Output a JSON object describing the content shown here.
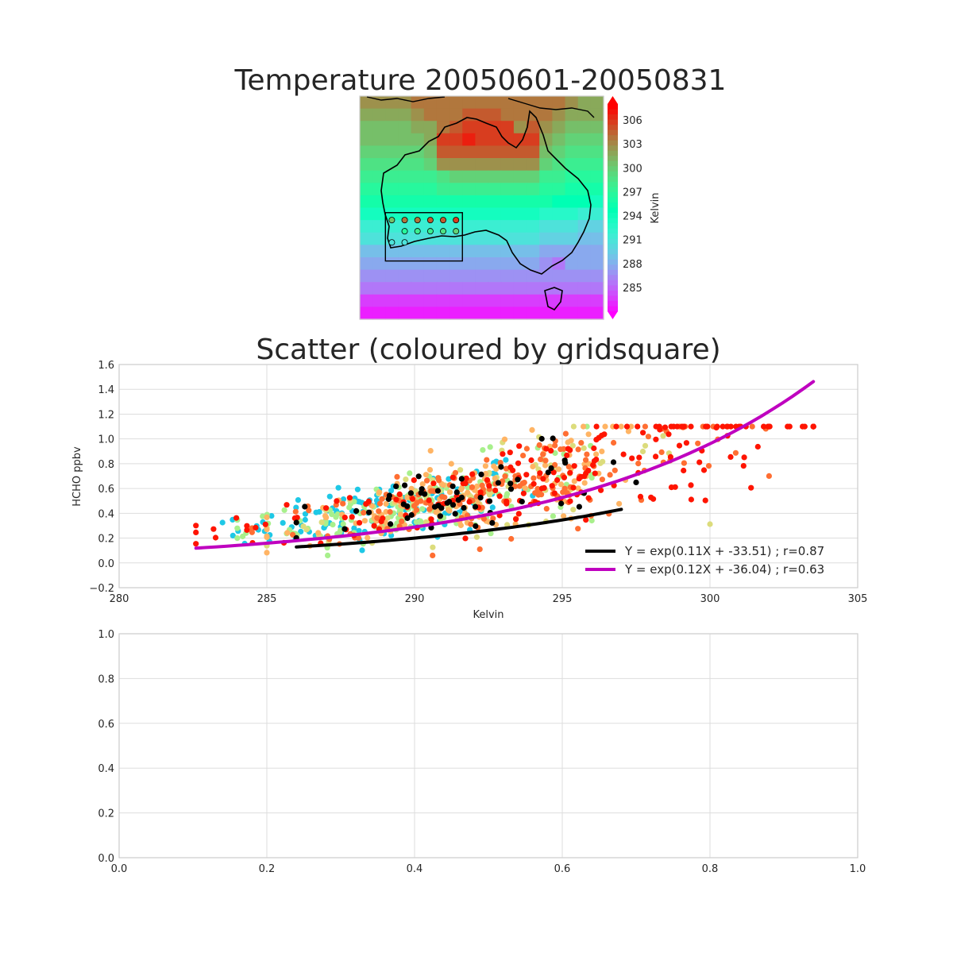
{
  "chart_data": [
    {
      "type": "heatmap",
      "title": "Temperature 20050601-20050831",
      "colorbar": {
        "label": "Kelvin",
        "ticks": [
          "306",
          "303",
          "300",
          "297",
          "294",
          "291",
          "288",
          "285"
        ],
        "range": [
          282,
          308
        ],
        "extend": "both",
        "colormap": "rainbow"
      },
      "grid": {
        "rows": 18,
        "cols": 19,
        "values": [
          [
            303,
            303,
            303,
            303,
            304,
            304,
            304,
            304,
            304,
            304,
            304,
            304,
            304,
            304,
            304,
            304,
            303,
            302,
            302
          ],
          [
            302,
            302,
            302,
            302,
            303,
            304,
            304,
            304,
            305,
            305,
            305,
            304,
            304,
            304,
            304,
            303,
            302,
            302,
            302
          ],
          [
            301,
            301,
            301,
            301,
            302,
            302,
            304,
            305,
            306,
            306,
            306,
            306,
            303,
            305,
            303,
            302,
            301,
            301,
            301
          ],
          [
            301,
            301,
            301,
            301,
            301,
            302,
            306,
            306,
            307,
            306,
            306,
            306,
            306,
            306,
            302,
            301,
            300,
            300,
            300
          ],
          [
            300,
            300,
            300,
            300,
            300,
            301,
            305,
            305,
            305,
            305,
            305,
            305,
            305,
            305,
            301,
            300,
            299,
            299,
            299
          ],
          [
            299,
            299,
            299,
            299,
            299,
            300,
            303,
            303,
            303,
            303,
            303,
            303,
            303,
            303,
            300,
            299,
            298,
            298,
            298
          ],
          [
            298,
            298,
            298,
            298,
            298,
            298,
            299,
            300,
            300,
            300,
            300,
            300,
            300,
            300,
            298,
            298,
            297,
            297,
            297
          ],
          [
            297,
            297,
            297,
            297,
            297,
            297,
            298,
            298,
            298,
            298,
            298,
            298,
            298,
            298,
            297,
            297,
            296,
            296,
            296
          ],
          [
            296,
            296,
            296,
            296,
            296,
            296,
            296,
            296,
            296,
            296,
            296,
            296,
            296,
            296,
            296,
            295,
            295,
            295,
            294
          ],
          [
            294,
            294,
            294,
            294,
            294,
            294,
            294,
            294,
            294,
            294,
            294,
            294,
            294,
            294,
            293,
            293,
            293,
            292,
            292
          ],
          [
            292,
            292,
            292,
            292,
            292,
            292,
            292,
            292,
            292,
            292,
            292,
            292,
            292,
            292,
            291,
            291,
            291,
            290,
            290
          ],
          [
            291,
            291,
            291,
            291,
            291,
            291,
            291,
            291,
            291,
            291,
            291,
            291,
            291,
            291,
            290,
            290,
            290,
            289,
            289
          ],
          [
            289,
            289,
            289,
            289,
            289,
            289,
            289,
            289,
            289,
            289,
            289,
            289,
            289,
            289,
            288,
            288,
            288,
            288,
            288
          ],
          [
            288,
            288,
            288,
            288,
            288,
            288,
            288,
            288,
            288,
            288,
            288,
            288,
            288,
            288,
            287,
            286,
            288,
            288,
            288
          ],
          [
            287,
            287,
            287,
            287,
            287,
            287,
            287,
            287,
            287,
            287,
            287,
            287,
            287,
            287,
            287,
            287,
            287,
            287,
            287
          ],
          [
            286,
            286,
            286,
            286,
            286,
            286,
            286,
            286,
            286,
            286,
            286,
            286,
            286,
            286,
            286,
            286,
            286,
            286,
            286
          ],
          [
            284,
            284,
            284,
            284,
            284,
            284,
            284,
            284,
            284,
            284,
            284,
            284,
            284,
            284,
            284,
            284,
            284,
            284,
            284
          ],
          [
            283,
            283,
            283,
            283,
            283,
            283,
            283,
            283,
            283,
            283,
            283,
            283,
            283,
            283,
            283,
            283,
            283,
            283,
            283
          ]
        ]
      },
      "region_box": {
        "col0": 2,
        "row0": 9.4,
        "col1": 8,
        "row1": 13.3
      },
      "gridsquare_markers": [
        {
          "col": 2.5,
          "row": 10.0,
          "value": 301
        },
        {
          "col": 3.5,
          "row": 10.0,
          "value": 304
        },
        {
          "col": 4.5,
          "row": 10.0,
          "value": 304
        },
        {
          "col": 5.5,
          "row": 10.0,
          "value": 305
        },
        {
          "col": 6.5,
          "row": 10.0,
          "value": 305
        },
        {
          "col": 7.5,
          "row": 10.0,
          "value": 306
        },
        {
          "col": 3.5,
          "row": 10.9,
          "value": 297
        },
        {
          "col": 4.5,
          "row": 10.9,
          "value": 298
        },
        {
          "col": 5.5,
          "row": 10.9,
          "value": 298
        },
        {
          "col": 6.5,
          "row": 10.9,
          "value": 299
        },
        {
          "col": 7.5,
          "row": 10.9,
          "value": 300
        },
        {
          "col": 2.5,
          "row": 11.8,
          "value": 291
        },
        {
          "col": 3.5,
          "row": 11.8,
          "value": 291
        }
      ]
    },
    {
      "type": "scatter",
      "title": "Scatter (coloured by gridsquare)",
      "xlabel": "Kelvin",
      "ylabel": "HCHO ppbv",
      "xlim": [
        280,
        305
      ],
      "ylim": [
        -0.2,
        1.6
      ],
      "xticks": [
        "280",
        "285",
        "290",
        "295",
        "300",
        "305"
      ],
      "yticks": [
        "1.6",
        "1.4",
        "1.2",
        "1.0",
        "0.8",
        "0.6",
        "0.4",
        "0.2",
        "0.0",
        "−0.2"
      ],
      "grid": true,
      "legend_position": "lower-right",
      "groups": [
        {
          "color": "#1ec8e6",
          "x_range": [
            283.5,
            294
          ],
          "center": 289,
          "count": 140
        },
        {
          "color": "#a8f08c",
          "x_range": [
            284,
            296
          ],
          "center": 290,
          "count": 140
        },
        {
          "color": "#dcdc7c",
          "x_range": [
            285,
            300
          ],
          "center": 292,
          "count": 80
        },
        {
          "color": "#ffb464",
          "x_range": [
            285,
            299
          ],
          "center": 292,
          "count": 140
        },
        {
          "color": "#ff6e32",
          "x_range": [
            284.5,
            302
          ],
          "center": 293,
          "count": 170
        },
        {
          "color": "#ff1400",
          "x_range": [
            282.6,
            303.5
          ],
          "center": 294,
          "count": 190
        },
        {
          "color": "#000000",
          "x_range": [
            286,
            297.5
          ],
          "center": 292,
          "count": 60
        }
      ],
      "series": [
        {
          "name": "Y = exp(0.11X + -33.51) ; r=0.87",
          "color": "#000000",
          "a": 0.11,
          "b": -33.51,
          "x_range": [
            286,
            297
          ]
        },
        {
          "name": "Y = exp(0.12X + -36.04) ; r=0.63",
          "color": "#bf00bf",
          "a": 0.12,
          "b": -36.04,
          "x_range": [
            282.6,
            303.5
          ]
        }
      ]
    },
    {
      "type": "scatter",
      "title": "",
      "xlim": [
        0,
        1
      ],
      "ylim": [
        0,
        1
      ],
      "xticks": [
        "0.0",
        "0.2",
        "0.4",
        "0.6",
        "0.8",
        "1.0"
      ],
      "yticks": [
        "1.0",
        "0.8",
        "0.6",
        "0.4",
        "0.2",
        "0.0"
      ],
      "grid": true
    }
  ]
}
